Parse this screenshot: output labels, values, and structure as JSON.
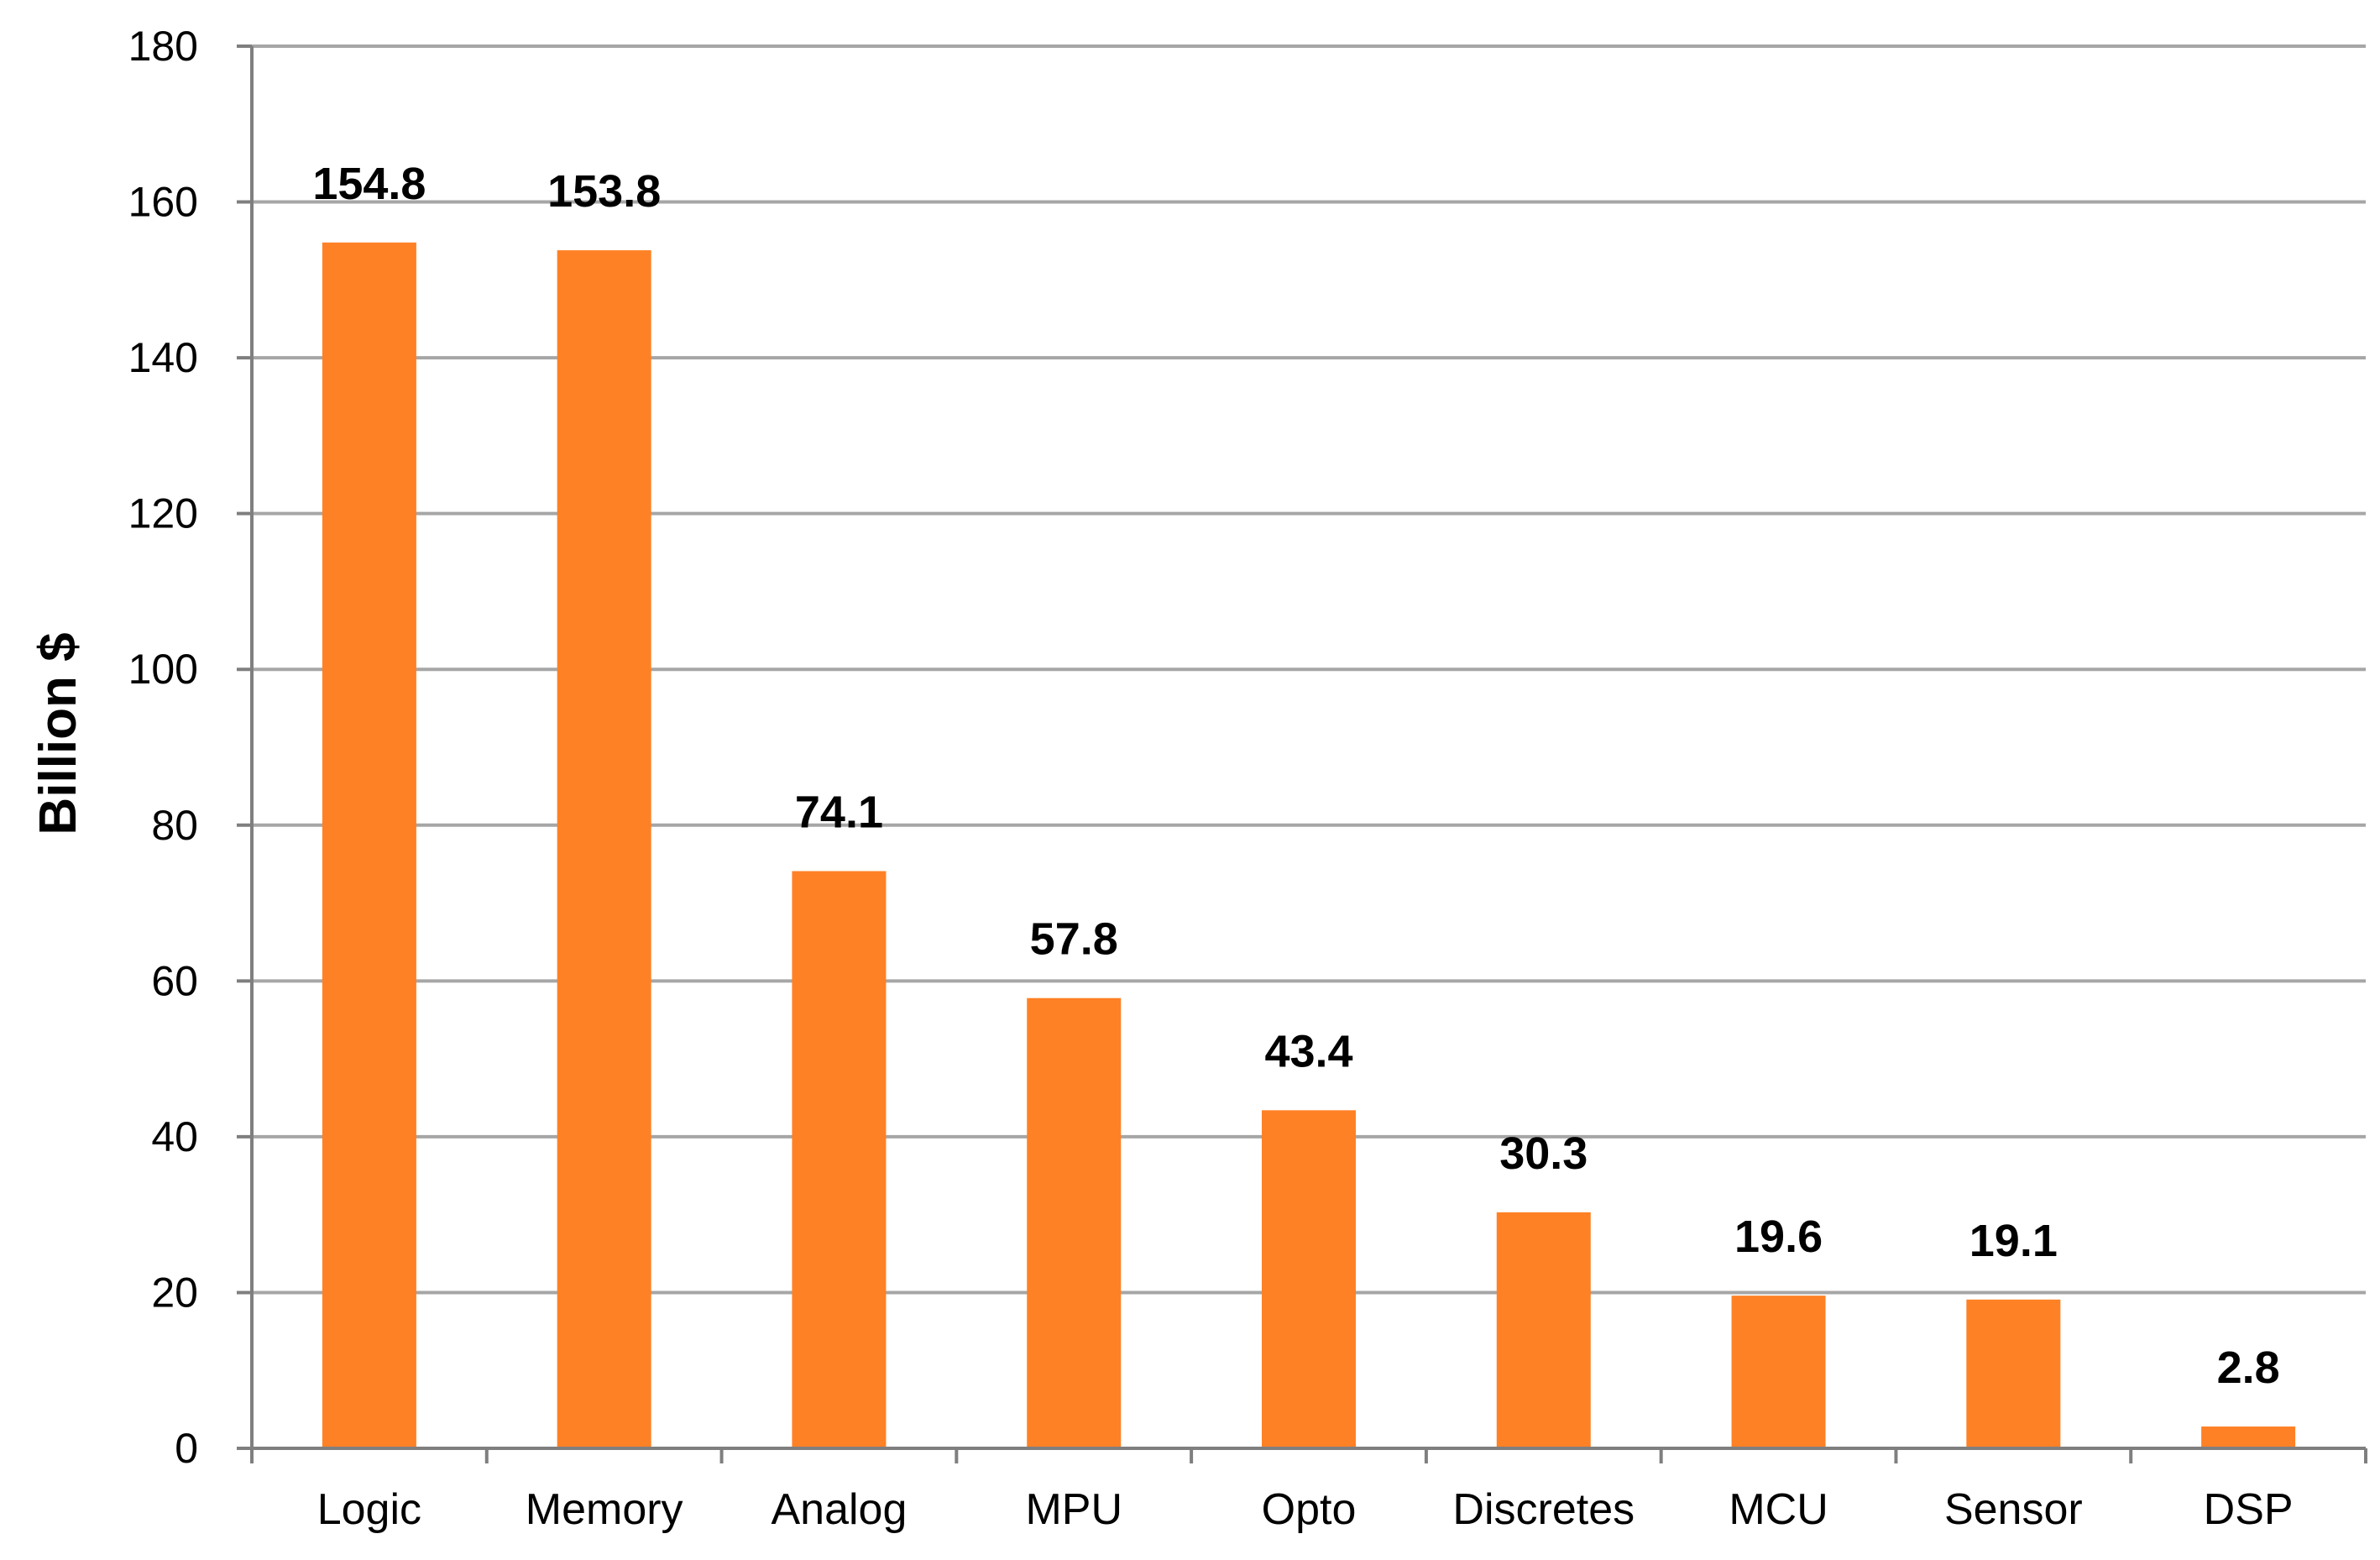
{
  "chart_data": {
    "type": "bar",
    "title": "",
    "xlabel": "",
    "ylabel": "Billion $",
    "ylim": [
      0,
      180
    ],
    "yticks": [
      0,
      20,
      40,
      60,
      80,
      100,
      120,
      140,
      160,
      180
    ],
    "grid": true,
    "legend": "none",
    "bar_color": "#FF8125",
    "grid_color": "#A6A6A6",
    "axis_color": "#7F7F7F",
    "categories": [
      "Logic",
      "Memory",
      "Analog",
      "MPU",
      "Opto",
      "Discretes",
      "MCU",
      "Sensor",
      "DSP"
    ],
    "values": [
      154.8,
      153.8,
      74.1,
      57.8,
      43.4,
      30.3,
      19.6,
      19.1,
      2.8
    ],
    "data_labels": [
      "154.8",
      "153.8",
      "74.1",
      "57.8",
      "43.4",
      "30.3",
      "19.6",
      "19.1",
      "2.8"
    ]
  }
}
